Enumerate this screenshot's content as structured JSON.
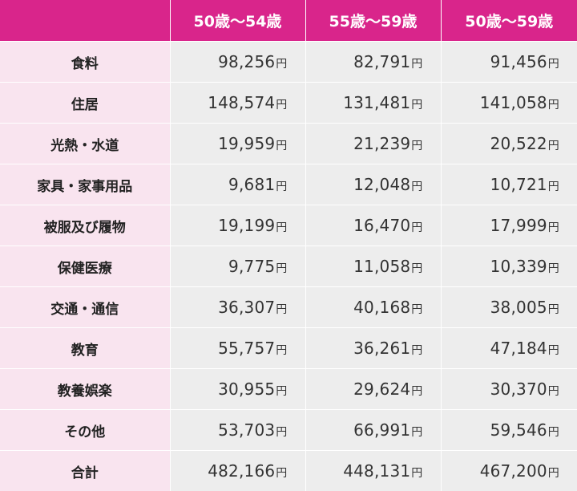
{
  "table": {
    "headers": [
      "",
      "50歳〜54歳",
      "55歳〜59歳",
      "50歳〜59歳"
    ],
    "unit": "円",
    "rows": [
      {
        "label": "食料",
        "values": [
          "98,256",
          "82,791",
          "91,456"
        ]
      },
      {
        "label": "住居",
        "values": [
          "148,574",
          "131,481",
          "141,058"
        ]
      },
      {
        "label": "光熱・水道",
        "values": [
          "19,959",
          "21,239",
          "20,522"
        ]
      },
      {
        "label": "家具・家事用品",
        "values": [
          "9,681",
          "12,048",
          "10,721"
        ]
      },
      {
        "label": "被服及び履物",
        "values": [
          "19,199",
          "16,470",
          "17,999"
        ]
      },
      {
        "label": "保健医療",
        "values": [
          "9,775",
          "11,058",
          "10,339"
        ]
      },
      {
        "label": "交通・通信",
        "values": [
          "36,307",
          "40,168",
          "38,005"
        ]
      },
      {
        "label": "教育",
        "values": [
          "55,757",
          "36,261",
          "47,184"
        ]
      },
      {
        "label": "教養娯楽",
        "values": [
          "30,955",
          "29,624",
          "30,370"
        ]
      },
      {
        "label": "その他",
        "values": [
          "53,703",
          "66,991",
          "59,546"
        ]
      },
      {
        "label": "合計",
        "values": [
          "482,166",
          "448,131",
          "467,200"
        ]
      }
    ]
  },
  "colors": {
    "header_bg": "#d9258b",
    "label_bg": "#f9e4ef",
    "value_bg": "#ededed"
  }
}
